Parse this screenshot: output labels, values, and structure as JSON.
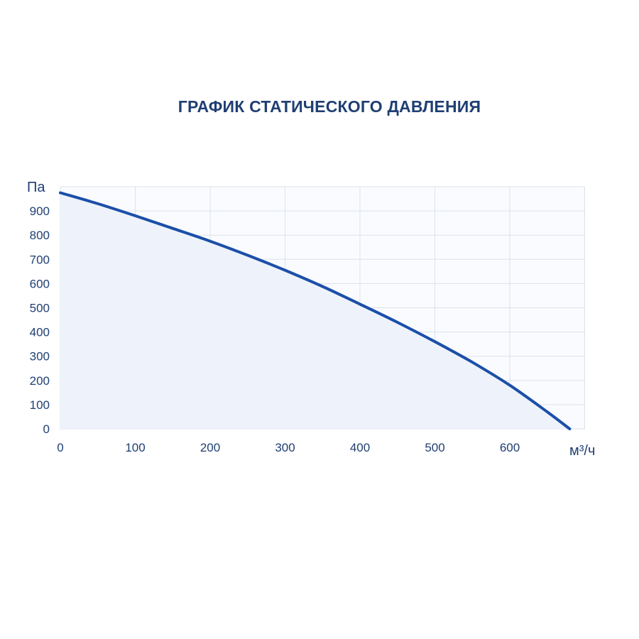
{
  "chart_data": {
    "type": "area",
    "title": "ГРАФИК СТАТИЧЕСКОГО ДАВЛЕНИЯ",
    "ylabel": "Па",
    "xlabel": "м³/ч",
    "xlim": [
      0,
      700
    ],
    "ylim": [
      0,
      1000
    ],
    "x_ticks": [
      0,
      100,
      200,
      300,
      400,
      500,
      600
    ],
    "y_ticks": [
      0,
      100,
      200,
      300,
      400,
      500,
      600,
      700,
      800,
      900
    ],
    "x_tick_labels": [
      "0",
      "100",
      "200",
      "300",
      "400",
      "500",
      "600"
    ],
    "y_tick_labels": [
      "0",
      "100",
      "200",
      "300",
      "400",
      "500",
      "600",
      "700",
      "800",
      "900"
    ],
    "grid": true,
    "series": [
      {
        "x": [
          0,
          50,
          100,
          150,
          200,
          250,
          300,
          350,
          400,
          450,
          500,
          550,
          600,
          650,
          680
        ],
        "values": [
          975,
          930,
          880,
          828,
          775,
          717,
          655,
          588,
          515,
          440,
          360,
          275,
          180,
          70,
          0
        ],
        "color": "#1b4fa8",
        "fill": "#eef3fb"
      }
    ]
  }
}
